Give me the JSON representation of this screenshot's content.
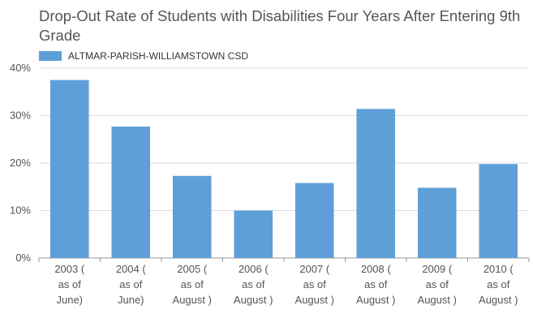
{
  "chart_data": {
    "type": "bar",
    "title": "Drop-Out Rate of Students with Disabilities Four Years After Entering 9th Grade",
    "categories": [
      [
        "2003 (",
        "as of",
        "June)"
      ],
      [
        "2004 (",
        "as of",
        "June)"
      ],
      [
        "2005 (",
        "as of",
        "August )"
      ],
      [
        "2006 (",
        "as of",
        "August )"
      ],
      [
        "2007 (",
        "as of",
        "August )"
      ],
      [
        "2008 (",
        "as of",
        "August )"
      ],
      [
        "2009 (",
        "as of",
        "August )"
      ],
      [
        "2010 (",
        "as of",
        "August )"
      ]
    ],
    "series": [
      {
        "name": "ALTMAR-PARISH-WILLIAMSTOWN CSD",
        "values": [
          37.5,
          27.7,
          17.3,
          10.0,
          15.8,
          31.4,
          14.8,
          19.8
        ],
        "color": "#5f9fd9"
      }
    ],
    "yticks": [
      "0%",
      "10%",
      "20%",
      "30%",
      "40%"
    ],
    "ylim": [
      0,
      40
    ],
    "grid": true,
    "legend_position": "top-left"
  }
}
